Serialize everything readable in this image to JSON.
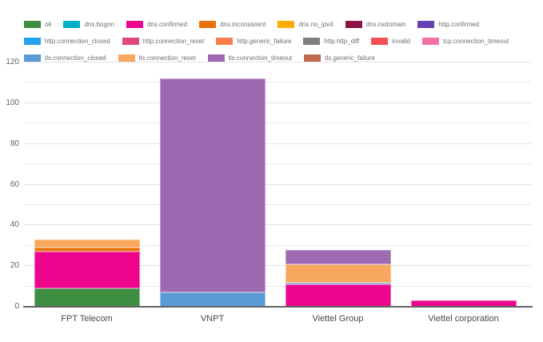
{
  "chart_data": {
    "type": "bar",
    "stacked": true,
    "title": "",
    "xlabel": "",
    "ylabel": "",
    "categories": [
      "FPT Telecom",
      "VNPT",
      "Viettel Group",
      "Viettel corporation"
    ],
    "series": [
      {
        "name": "ok",
        "color": "#3e8e41",
        "values": [
          9,
          0,
          0,
          0
        ]
      },
      {
        "name": "dns.bogon",
        "color": "#00b0c6",
        "values": [
          0,
          0,
          0,
          0
        ]
      },
      {
        "name": "dns.confirmed",
        "color": "#ee058e",
        "values": [
          18,
          0,
          11,
          3
        ]
      },
      {
        "name": "dns.inconsistent",
        "color": "#e8710a",
        "values": [
          2,
          0,
          0,
          0
        ]
      },
      {
        "name": "dns.no_ipv4",
        "color": "#ffab00",
        "values": [
          0,
          0,
          0,
          0
        ]
      },
      {
        "name": "dns.nxdomain",
        "color": "#8d1245",
        "values": [
          0,
          0,
          0,
          0
        ]
      },
      {
        "name": "http.confirmed",
        "color": "#6740b4",
        "values": [
          0,
          0,
          0,
          0
        ]
      },
      {
        "name": "http.connection_closed",
        "color": "#22a2f0",
        "values": [
          0,
          0,
          0,
          0
        ]
      },
      {
        "name": "http.connection_reset",
        "color": "#e2487f",
        "values": [
          0,
          0,
          0,
          0
        ]
      },
      {
        "name": "http.generic_failure",
        "color": "#fd7d4f",
        "values": [
          0,
          0,
          0,
          0
        ]
      },
      {
        "name": "http.http_diff",
        "color": "#7f7f7f",
        "values": [
          0,
          0,
          0,
          0
        ]
      },
      {
        "name": "invalid",
        "color": "#f25056",
        "values": [
          0,
          0,
          0,
          0
        ]
      },
      {
        "name": "tcp.connection_timeout",
        "color": "#f272a7",
        "values": [
          0,
          0,
          0,
          0
        ]
      },
      {
        "name": "tls.connection_closed",
        "color": "#5b9bd5",
        "values": [
          0,
          7,
          1,
          0
        ]
      },
      {
        "name": "tls.connection_reset",
        "color": "#f8a75e",
        "values": [
          4,
          0,
          9,
          0
        ]
      },
      {
        "name": "tls.connection_timeout",
        "color": "#9d69b0",
        "values": [
          0,
          105,
          7,
          0
        ]
      },
      {
        "name": "tls.generic_failure",
        "color": "#c16a52",
        "values": [
          0,
          0,
          0,
          0
        ]
      }
    ],
    "totals": [
      33,
      112,
      28,
      3
    ],
    "ylim": [
      0,
      120
    ],
    "yticks": [
      0,
      20,
      40,
      60,
      80,
      100,
      120
    ],
    "minor_gridline_step": 10,
    "grid": true,
    "legend_position": "top",
    "legend_rows": [
      7,
      6,
      4
    ]
  }
}
